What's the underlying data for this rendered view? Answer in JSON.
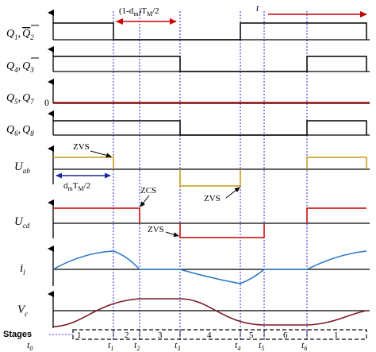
{
  "colors": {
    "axis": "#000000",
    "q_wave": "#000000",
    "q57_wave": "#cc0000",
    "uab_wave": "#c89a10",
    "ucd_wave": "#cc0000",
    "il_wave": "#2a78c8",
    "vc_wave": "#7a1a24",
    "marker": "#3a3ad8",
    "arrow_red": "#cc0000",
    "arrow_blue": "#1a2aa8",
    "stage_box": "#000000"
  },
  "signals": [
    {
      "name": "Q1, Q̄2",
      "main": "Q",
      "sub": "1",
      "sep": ",",
      "main2": "Q",
      "sub2": "2",
      "overline2": true
    },
    {
      "name": "Q4, Q̄3",
      "main": "Q",
      "sub": "4",
      "sep": ",",
      "main2": "Q",
      "sub2": "3",
      "overline2": true
    },
    {
      "name": "Q5, Q7",
      "main": "Q",
      "sub": "5",
      "sep": ",",
      "main2": "Q",
      "sub2": "7",
      "overline2": false,
      "zero": "0"
    },
    {
      "name": "Q6, Q8",
      "main": "Q",
      "sub": "6",
      "sep": ",",
      "main2": "Q",
      "sub2": "8",
      "overline2": false
    },
    {
      "name": "Uab",
      "main": "U",
      "sub": "ab"
    },
    {
      "name": "Ucd",
      "main": "U",
      "sub": "cd"
    },
    {
      "name": "il",
      "main": "i",
      "sub": "l"
    },
    {
      "name": "Vc",
      "main": "V",
      "sub": "c"
    }
  ],
  "annotations": {
    "dead_time": "(1-d",
    "dead_time_sub": "m",
    "dead_time_tail": ")T",
    "dead_time_sub2": "M",
    "dead_time_end": "/2",
    "t_label": "t",
    "zvs_1": "ZVS",
    "dm_label": "d",
    "dm_sub": "m",
    "dm_mid": "T",
    "dm_sub2": "M",
    "dm_end": "/2",
    "zcs": "ZCS",
    "zvs_2": "ZVS",
    "zvs_3": "ZVS"
  },
  "stages": {
    "title": "Stages",
    "labels": [
      "1",
      "2",
      "3",
      "4",
      "5",
      "6",
      "1"
    ]
  },
  "time_marks": [
    {
      "main": "t",
      "sub": "0"
    },
    {
      "main": "t",
      "sub": "1"
    },
    {
      "main": "t",
      "sub": "2"
    },
    {
      "main": "t",
      "sub": "3"
    },
    {
      "main": "t",
      "sub": "4"
    },
    {
      "main": "t",
      "sub": "5"
    },
    {
      "main": "t",
      "sub": "6"
    }
  ]
}
